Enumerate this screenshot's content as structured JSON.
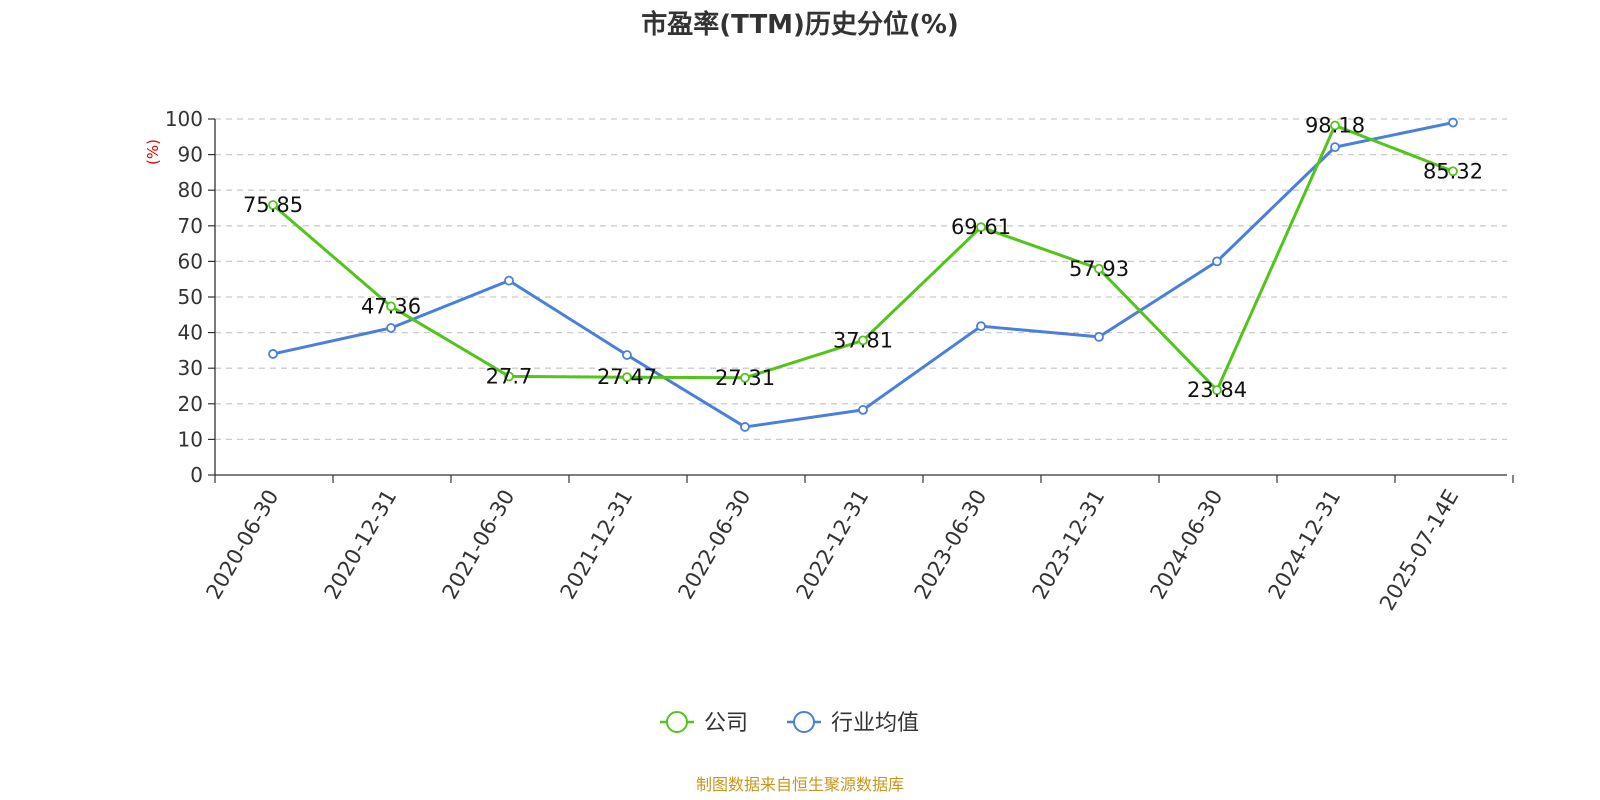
{
  "chart_data": {
    "type": "line",
    "title": "市盈率(TTM)历史分位(%)",
    "ylabel": "(%)",
    "ylim": [
      0,
      100
    ],
    "yticks": [
      0,
      10,
      20,
      30,
      40,
      50,
      60,
      70,
      80,
      90,
      100
    ],
    "categories": [
      "2020-06-30",
      "2020-12-31",
      "2021-06-30",
      "2021-12-31",
      "2022-06-30",
      "2022-12-31",
      "2023-06-30",
      "2023-12-31",
      "2024-06-30",
      "2024-12-31",
      "2025-07-14E"
    ],
    "grid": true,
    "legend_position": "bottom-center",
    "series": [
      {
        "name": "公司",
        "color": "#52c41a",
        "values": [
          75.85,
          47.36,
          27.7,
          27.47,
          27.31,
          37.81,
          69.61,
          57.93,
          23.84,
          98.18,
          85.32
        ],
        "labels": [
          "75.85",
          "47.36",
          "27.7",
          "27.47",
          "27.31",
          "37.81",
          "69.61",
          "57.93",
          "23.84",
          "98.18",
          "85.32"
        ]
      },
      {
        "name": "行业均值",
        "color": "#4a7fdc",
        "values": [
          34.0,
          41.3,
          54.6,
          33.7,
          13.5,
          18.3,
          41.8,
          38.8,
          60.0,
          92.1,
          99.0
        ]
      }
    ]
  },
  "source_text": "制图数据来自恒生聚源数据库",
  "colors": {
    "ylabel": "#e60000",
    "source": "#c8961e",
    "grid": "#cccccc",
    "axis": "#333333"
  }
}
